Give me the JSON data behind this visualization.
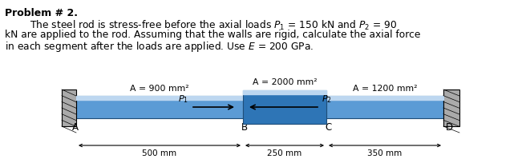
{
  "title": "Problem # 2.",
  "line1": "        The steel rod is stress-free before the axial loads $P_1$ = 150 kN and $P_2$ = 90",
  "line2": "kN are applied to the rod. Assuming that the walls are rigid, calculate the axial force",
  "line3": "in each segment after the loads are applied. Use $E$ = 200 GPa.",
  "background_color": "#ffffff",
  "wall_color": "#aaaaaa",
  "rod_main_color": "#5b9bd5",
  "rod_light_color": "#bdd7f0",
  "rod_mid_color": "#2e75b6",
  "rod_dark_edge": "#1f4e79",
  "label_A1": "A = 900 mm²",
  "label_A2": "A = 2000 mm²",
  "label_A3": "A = 1200 mm²",
  "label_P1": "$P_1$",
  "label_P2": "$P_2$",
  "pt_A": "A",
  "pt_B": "B",
  "pt_C": "C",
  "pt_D": "D",
  "dim_AB": "500 mm",
  "dim_BC": "250 mm",
  "dim_CD": "350 mm",
  "fig_width": 6.56,
  "fig_height": 1.99,
  "dpi": 100
}
